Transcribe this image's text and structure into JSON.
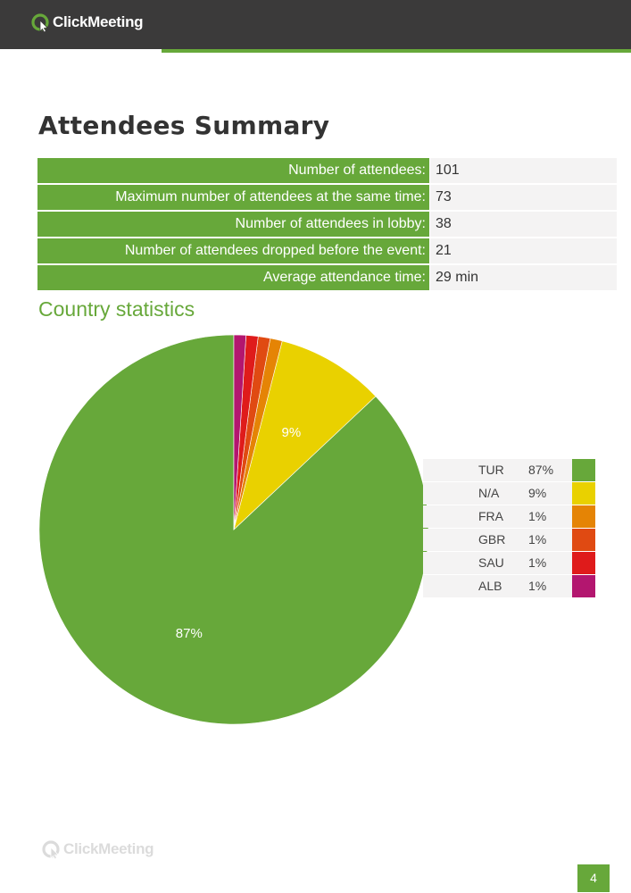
{
  "brand": {
    "name": "ClickMeeting",
    "accent": "#67a83a",
    "header_bg": "#3b3a3a"
  },
  "page_title": "Attendees Summary",
  "summary": [
    {
      "label": "Number of attendees:",
      "value": "101"
    },
    {
      "label": "Maximum number of attendees at the same time:",
      "value": "73"
    },
    {
      "label": "Number of attendees in lobby:",
      "value": "38"
    },
    {
      "label": "Number of attendees dropped before the event:",
      "value": "21"
    },
    {
      "label": "Average attendance time:",
      "value": "29 min"
    }
  ],
  "section_title": "Country statistics",
  "chart_data": {
    "type": "pie",
    "categories": [
      "TUR",
      "N/A",
      "FRA",
      "GBR",
      "SAU",
      "ALB"
    ],
    "values": [
      87,
      9,
      1,
      1,
      1,
      1
    ],
    "labels": [
      "87%",
      "9%",
      "1%",
      "1%",
      "1%",
      "1%"
    ],
    "colors": [
      "#67a83a",
      "#e9d100",
      "#e58405",
      "#e04a12",
      "#df1b1b",
      "#b3166f"
    ],
    "slice_labels_shown": [
      "87%",
      "9%"
    ],
    "legend_position": "right"
  },
  "page_number": "4"
}
